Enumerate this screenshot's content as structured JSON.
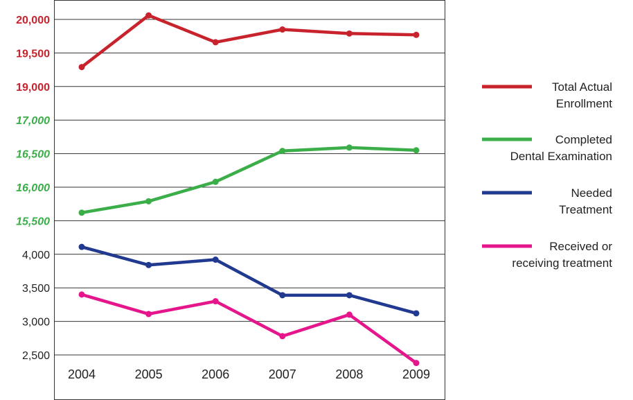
{
  "chart_data": {
    "type": "line",
    "title": "",
    "xlabel": "",
    "ylabel": "",
    "categories": [
      "2004",
      "2005",
      "2006",
      "2007",
      "2008",
      "2009"
    ],
    "y_tick_labels": [
      {
        "label": "20,000",
        "color": "#c8232c",
        "style": "bold"
      },
      {
        "label": "19,500",
        "color": "#c8232c",
        "style": "bold"
      },
      {
        "label": "19,000",
        "color": "#c8232c",
        "style": "bold"
      },
      {
        "label": "17,000",
        "color": "#3cae49",
        "style": "bold-italic"
      },
      {
        "label": "16,500",
        "color": "#3cae49",
        "style": "bold-italic"
      },
      {
        "label": "16,000",
        "color": "#3cae49",
        "style": "bold-italic"
      },
      {
        "label": "15,500",
        "color": "#3cae49",
        "style": "bold-italic"
      },
      {
        "label": "4,000",
        "color": "#222222",
        "style": "normal"
      },
      {
        "label": "3,500",
        "color": "#222222",
        "style": "normal"
      },
      {
        "label": "3,000",
        "color": "#222222",
        "style": "normal"
      },
      {
        "label": "2,500",
        "color": "#222222",
        "style": "normal"
      }
    ],
    "series": [
      {
        "name": "Total Actual Enrollment",
        "legend_lines": [
          "Total Actual",
          "Enrollment"
        ],
        "color": "#c8232c",
        "segment_ylim": [
          19000,
          20000
        ],
        "values": [
          19290,
          20060,
          19660,
          19850,
          19790,
          19770
        ]
      },
      {
        "name": "Completed Dental Examination",
        "legend_lines": [
          "Completed",
          "Dental Examination"
        ],
        "color": "#3cae49",
        "segment_ylim": [
          15500,
          17000
        ],
        "values": [
          15620,
          15790,
          16080,
          16540,
          16590,
          16550
        ]
      },
      {
        "name": "Needed Treatment",
        "legend_lines": [
          "Needed",
          "Treatment"
        ],
        "color": "#213a8f",
        "segment_ylim": [
          2500,
          4000
        ],
        "values": [
          4110,
          3840,
          3920,
          3390,
          3390,
          3120
        ]
      },
      {
        "name": "Received or receiving treatment",
        "legend_lines": [
          "Received or",
          "receiving treatment"
        ],
        "color": "#e5168c",
        "segment_ylim": [
          2500,
          4000
        ],
        "values": [
          3400,
          3110,
          3300,
          2780,
          3100,
          2380
        ]
      }
    ],
    "grid": true,
    "legend": "right"
  }
}
